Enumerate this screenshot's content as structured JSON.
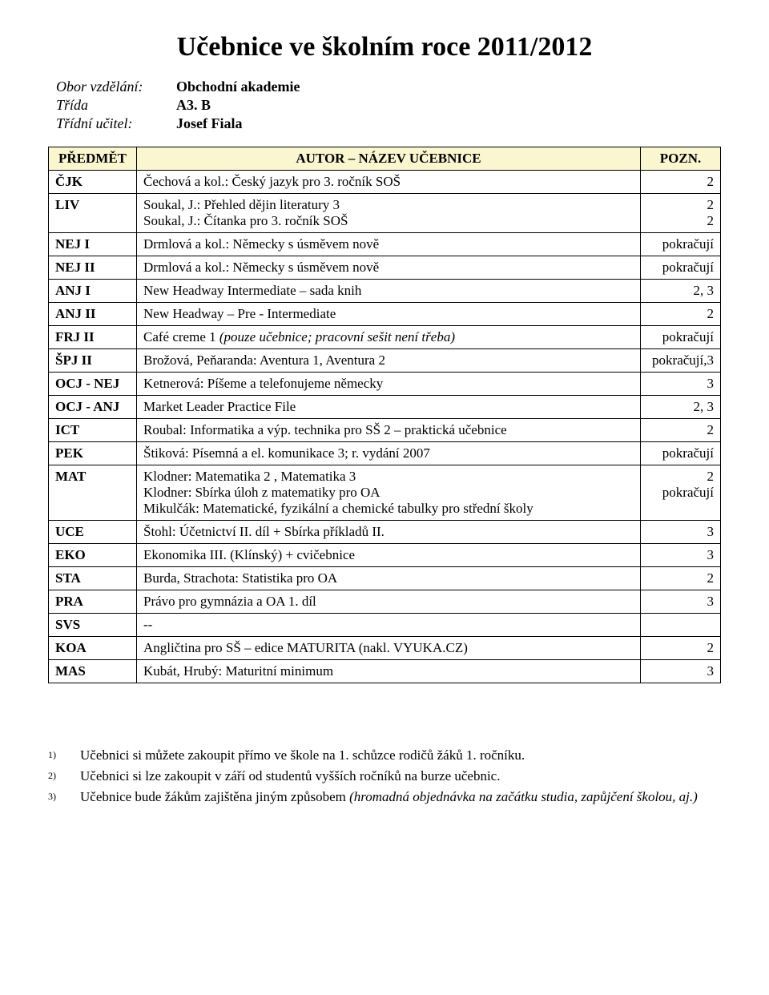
{
  "title": "Učebnice ve školním roce 2011/2012",
  "meta": {
    "row1_label": "Obor vzdělání:",
    "row1_value": "Obchodní akademie",
    "row2_label": "Třída",
    "row2_value": "A3. B",
    "row3_label": "Třídní učitel:",
    "row3_value": "Josef Fiala"
  },
  "table": {
    "header_bg": "#faf6cf",
    "columns": {
      "subject": "PŘEDMĚT",
      "content": "AUTOR – NÁZEV UČEBNICE",
      "note": "POZN."
    },
    "rows": [
      {
        "subject": "ČJK",
        "l1": "Čechová a kol.: Český jazyk pro 3. ročník SOŠ",
        "note": "2"
      },
      {
        "subject": "LIV",
        "l1": "Soukal, J.: Přehled dějin literatury 3",
        "l2": "Soukal, J.: Čítanka pro 3. ročník SOŠ",
        "note": "2\n2"
      },
      {
        "subject": "NEJ I",
        "l1": "Drmlová a kol.: Německy s úsměvem nově",
        "note": "pokračují"
      },
      {
        "subject": "NEJ II",
        "l1": " Drmlová a kol.: Německy s úsměvem nově",
        "note": "pokračují"
      },
      {
        "subject": "ANJ I",
        "l1": "New Headway Intermediate – sada knih",
        "note": "2, 3"
      },
      {
        "subject": "ANJ II",
        "l1": "New Headway – Pre - Intermediate",
        "note": "2"
      },
      {
        "subject": "FRJ II",
        "l1": "Café creme 1 ",
        "it1": "(pouze učebnice; pracovní sešit není třeba)",
        "note": "pokračují"
      },
      {
        "subject": "ŠPJ II",
        "l1": "Brožová, Peňaranda: Aventura 1, Aventura 2",
        "note": "pokračují,3"
      },
      {
        "subject": "OCJ - NEJ",
        "l1": "Ketnerová: Píšeme a telefonujeme německy",
        "note": "3"
      },
      {
        "subject": "OCJ - ANJ",
        "l1": "Market Leader Practice File",
        "note": "2, 3"
      },
      {
        "subject": "ICT",
        "l1": "Roubal: Informatika a výp. technika pro SŠ 2 – praktická učebnice",
        "note": "2"
      },
      {
        "subject": "PEK",
        "l1": "Štiková: Písemná a el. komunikace 3; r. vydání 2007",
        "note": "pokračují"
      },
      {
        "subject": "MAT",
        "l1": "Klodner: Matematika 2 , Matematika 3",
        "l2": "Klodner: Sbírka úloh z matematiky pro OA",
        "l3": "Mikulčák: Matematické, fyzikální a chemické tabulky pro střední školy",
        "note": "2\npokračují"
      },
      {
        "subject": "UCE",
        "l1": "Štohl: Účetnictví II. díl + Sbírka příkladů II.",
        "note": "3"
      },
      {
        "subject": "EKO",
        "l1": "Ekonomika III. (Klínský) + cvičebnice",
        "note": "3"
      },
      {
        "subject": "STA",
        "l1": "Burda, Strachota: Statistika pro OA",
        "note": "2"
      },
      {
        "subject": "PRA",
        "l1": "Právo pro gymnázia a OA 1. díl",
        "note": "3"
      },
      {
        "subject": "SVS",
        "l1": "--",
        "note": ""
      },
      {
        "subject": "KOA",
        "l1": "Angličtina pro SŠ – edice MATURITA (nakl. VYUKA.CZ)",
        "note": "2"
      },
      {
        "subject": "MAS",
        "l1": "Kubát, Hrubý: Maturitní minimum",
        "note": "3"
      }
    ]
  },
  "footnotes": [
    {
      "marker": "1)",
      "pre": "Učebnici si můžete zakoupit přímo ve škole na 1. schůzce rodičů žáků 1. ročníku."
    },
    {
      "marker": "2)",
      "pre": "Učebnici si lze zakoupit v září od studentů vyšších ročníků na burze učebnic."
    },
    {
      "marker": "3)",
      "pre": "Učebnice bude žákům zajištěna jiným způsobem ",
      "it": "(hromadná objednávka na začátku studia, zapůjčení školou, aj.)"
    }
  ]
}
